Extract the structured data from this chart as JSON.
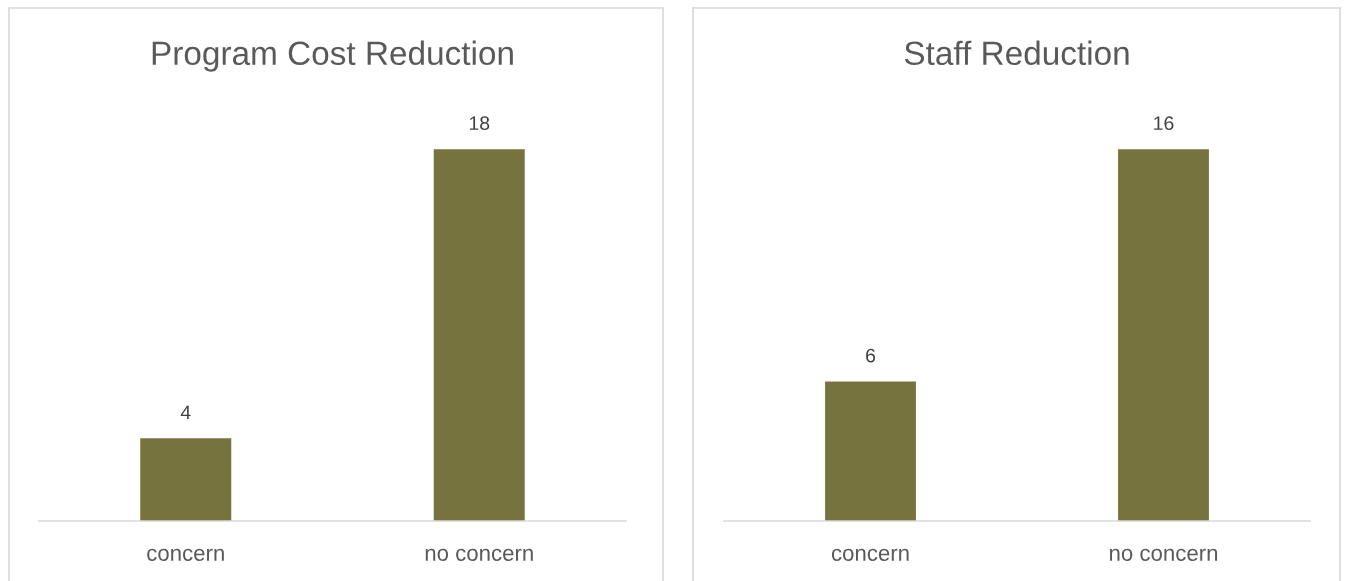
{
  "chart_data": [
    {
      "type": "bar",
      "title": "Program Cost Reduction",
      "categories": [
        "concern",
        "no concern"
      ],
      "values": [
        4,
        18
      ],
      "color": "#77733f",
      "data_labels": true
    },
    {
      "type": "bar",
      "title": "Staff Reduction",
      "categories": [
        "concern",
        "no concern"
      ],
      "values": [
        6,
        16
      ],
      "color": "#77733f",
      "data_labels": true
    }
  ]
}
